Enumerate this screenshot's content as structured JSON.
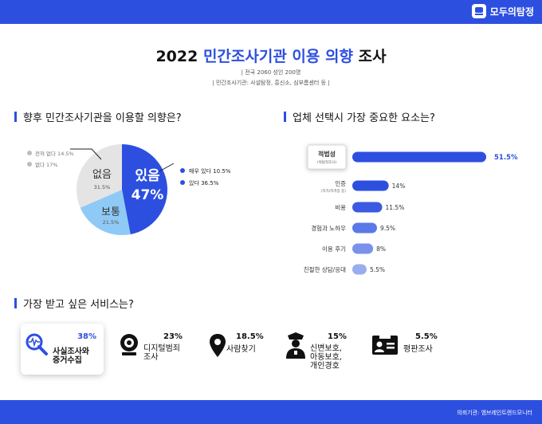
{
  "brand": {
    "name": "모두의탐정"
  },
  "header": {
    "title_prefix": "2022 ",
    "title_highlight": "민간조사기관 이용 의향",
    "title_suffix": " 조사",
    "subtitle1": "| 전국 2060 성인 200명",
    "subtitle2": "| 민간조사기관: 사설탐정, 흥신소, 심부름센터 등 |"
  },
  "sections": {
    "intent": "향후 민간조사기관을 이용할 의향은?",
    "factor": "업체 선택시 가장 중요한 요소는?",
    "service": "가장 받고 싶은 서비스는?"
  },
  "chart_data": [
    {
      "type": "pie",
      "slices": [
        {
          "name": "있음",
          "value": 47,
          "color": "#2d4fe0"
        },
        {
          "name": "보통",
          "value": 21.5,
          "color": "#8fcaf7"
        },
        {
          "name": "없음",
          "value": 31.5,
          "color": "#e4e4e4"
        }
      ],
      "labels": {
        "yes_name": "있음",
        "yes_pct": "47%",
        "mid_name": "보통",
        "mid_pct": "21.5%",
        "no_name": "없음",
        "no_pct": "31.5%"
      },
      "breakdown_yes": [
        {
          "label": "매우 있다 10.5%",
          "color": "#2d4fe0"
        },
        {
          "label": "있다 36.5%",
          "color": "#2d4fe0"
        }
      ],
      "breakdown_no": [
        {
          "label": "전혀 없다 14.5%",
          "color": "#bdbdbd"
        },
        {
          "label": "없다 17%",
          "color": "#bdbdbd"
        }
      ]
    },
    {
      "type": "bar",
      "orientation": "horizontal",
      "categories": [
        "적법성",
        "인증",
        "비용",
        "경험과 노하우",
        "이용 후기",
        "친절한 상담/응대"
      ],
      "sublabels": [
        "(위법적조사)",
        "(허가/자격증 등)",
        "",
        "",
        "",
        ""
      ],
      "values": [
        51.5,
        14,
        11.5,
        9.5,
        8,
        5.5
      ],
      "value_labels": [
        "51.5%",
        "14%",
        "11.5%",
        "9.5%",
        "8%",
        "5.5%"
      ],
      "colors": [
        "#2d4fe0",
        "#2d4fe0",
        "#3a5ae2",
        "#5b78e8",
        "#7a92ec",
        "#9aacf0"
      ]
    },
    {
      "type": "table",
      "items": [
        {
          "pct": "38%",
          "label": "사실조사와\n증거수집",
          "icon": "magnifier-pulse-icon"
        },
        {
          "pct": "23%",
          "label": "디지털범죄\n조사",
          "icon": "webcam-icon"
        },
        {
          "pct": "18.5%",
          "label": "사람찾기",
          "icon": "location-pin-icon"
        },
        {
          "pct": "15%",
          "label": "신변보호,\n아동보호,\n개인경호",
          "icon": "police-officer-icon"
        },
        {
          "pct": "5.5%",
          "label": "평판조사",
          "icon": "id-card-icon"
        }
      ]
    }
  ],
  "footer": {
    "text": "의뢰기관: 엠브레인트렌드모니터"
  }
}
